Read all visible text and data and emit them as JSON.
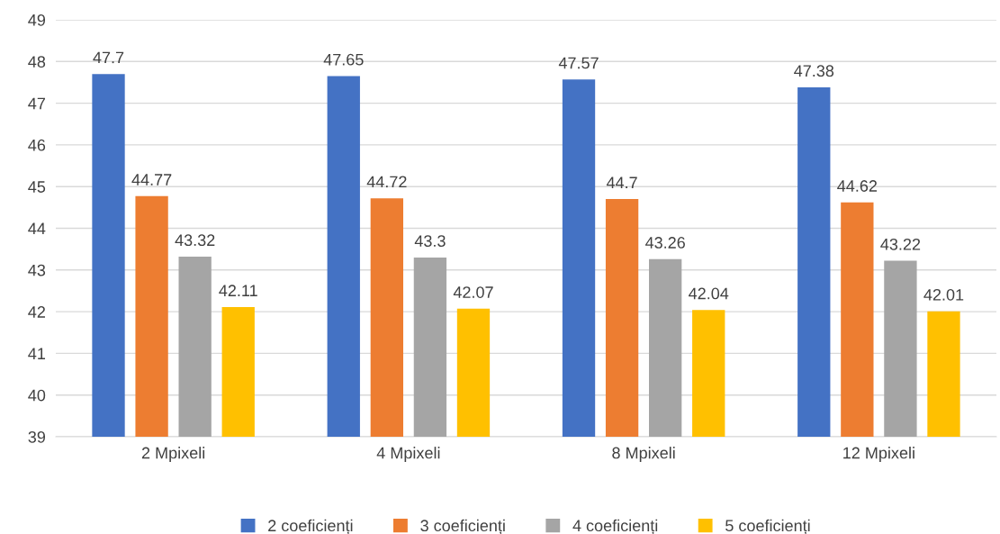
{
  "chart_data": {
    "type": "bar",
    "categories": [
      "2 Mpixeli",
      "4 Mpixeli",
      "8 Mpixeli",
      "12 Mpixeli"
    ],
    "series": [
      {
        "name": "2 coeficienți",
        "color": "#4472c4",
        "values": [
          47.7,
          47.65,
          47.57,
          47.38
        ]
      },
      {
        "name": "3 coeficienți",
        "color": "#ed7d31",
        "values": [
          44.77,
          44.72,
          44.7,
          44.62
        ]
      },
      {
        "name": "4 coeficienți",
        "color": "#a5a5a5",
        "values": [
          43.32,
          43.3,
          43.26,
          43.22
        ]
      },
      {
        "name": "5 coeficienți",
        "color": "#ffc000",
        "values": [
          42.11,
          42.07,
          42.04,
          42.01
        ]
      }
    ],
    "ylim": [
      39,
      49
    ],
    "yticks": [
      39,
      40,
      41,
      42,
      43,
      44,
      45,
      46,
      47,
      48,
      49
    ],
    "grid": "y",
    "legend": "bottom",
    "data_labels": true
  }
}
